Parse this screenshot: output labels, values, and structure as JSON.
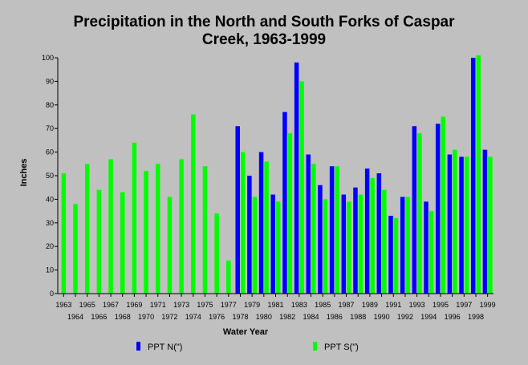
{
  "chart_data": {
    "type": "bar",
    "title_lines": [
      "Precipitation in the North and South Forks of Caspar",
      "Creek, 1963-1999"
    ],
    "xlabel": "Water Year",
    "ylabel": "Inches",
    "ylim": [
      0,
      100
    ],
    "yticks": [
      0,
      10,
      20,
      30,
      40,
      50,
      60,
      70,
      80,
      90,
      100
    ],
    "grid": false,
    "legend_position": "bottom",
    "categories": [
      "1963",
      "1964",
      "1965",
      "1966",
      "1967",
      "1968",
      "1969",
      "1970",
      "1971",
      "1972",
      "1973",
      "1974",
      "1975",
      "1976",
      "1977",
      "1978",
      "1979",
      "1980",
      "1981",
      "1982",
      "1983",
      "1984",
      "1985",
      "1986",
      "1987",
      "1988",
      "1989",
      "1990",
      "1991",
      "1992",
      "1993",
      "1994",
      "1995",
      "1996",
      "1997",
      "1998",
      "1999"
    ],
    "series": [
      {
        "name": "PPT N(\")",
        "color": "#0000ff",
        "values": [
          null,
          null,
          null,
          null,
          null,
          null,
          null,
          null,
          null,
          null,
          null,
          null,
          null,
          null,
          null,
          71,
          50,
          60,
          42,
          77,
          98,
          59,
          46,
          54,
          42,
          45,
          53,
          51,
          33,
          41,
          71,
          39,
          72,
          59,
          58,
          100,
          61
        ]
      },
      {
        "name": "PPT S(\")",
        "color": "#00ff00",
        "values": [
          51,
          38,
          55,
          44,
          57,
          43,
          64,
          52,
          55,
          41,
          57,
          76,
          54,
          34,
          14,
          60,
          41,
          56,
          39,
          68,
          90,
          55,
          40,
          54,
          39,
          42,
          49,
          44,
          32,
          41,
          68,
          35,
          75,
          61,
          58,
          101,
          58
        ]
      }
    ]
  }
}
